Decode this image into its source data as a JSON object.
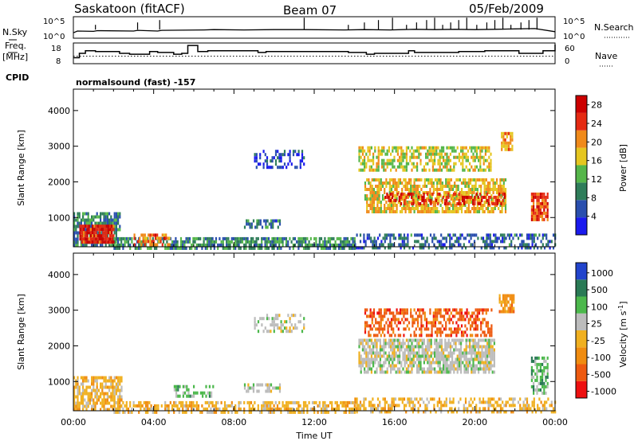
{
  "header": {
    "station": "Saskatoon (fitACF)",
    "beam": "Beam 07",
    "date": "05/Feb/2009",
    "cpid_label": "CPID",
    "cpid_value": "normalsound (fast) -157"
  },
  "noise_panel": {
    "left_label": "N.Sky",
    "right_label": "N.Search",
    "tick_high": "10^5",
    "tick_low": "10^0",
    "tick_high_right": "10^5",
    "tick_low_right": "10^0"
  },
  "freq_panel": {
    "left_label_1": "Freq.",
    "left_label_2": "[MHz]",
    "right_label": "Nave",
    "left_ticks": [
      "18",
      "8"
    ],
    "right_ticks": [
      "60",
      "0"
    ]
  },
  "chart_data": [
    {
      "type": "line",
      "name": "noise",
      "ylim_log10": [
        0,
        5
      ],
      "x_hours": [
        0,
        0.2,
        1.0,
        1.2,
        3.0,
        3.2,
        4.2,
        4.4,
        6.5,
        7.0,
        8.5,
        10.0,
        11.5,
        13.5,
        14.5,
        15.8,
        17.0,
        18.0,
        19.0,
        20.0,
        21.0,
        22.0,
        23.0,
        24.0
      ],
      "y_log10": [
        1.1,
        1.6,
        1.5,
        1.7,
        1.6,
        1.8,
        1.6,
        1.8,
        1.9,
        2.0,
        1.9,
        2.0,
        2.0,
        1.9,
        2.0,
        1.9,
        2.1,
        2.0,
        2.1,
        2.0,
        2.1,
        2.2,
        2.3,
        1.4
      ],
      "spike_hours": [
        1.1,
        3.2,
        4.3,
        11.5,
        13.7,
        14.5,
        15.2,
        15.9,
        16.6,
        17.1,
        17.6,
        18.0,
        18.4,
        18.8,
        19.2,
        19.6,
        20.1,
        20.6,
        21.0,
        21.4,
        21.8,
        22.3,
        22.7,
        23.1
      ]
    },
    {
      "type": "line",
      "name": "frequency",
      "ylim": [
        8,
        18
      ],
      "step_x_hours": [
        0,
        0.3,
        0.6,
        1.1,
        2.3,
        2.8,
        3.8,
        4.2,
        5.0,
        5.4,
        5.7,
        6.2,
        6.7,
        9.2,
        9.6,
        11.7,
        13.7,
        14.6,
        15.0,
        16.7,
        17.0,
        19.2,
        20.5,
        22.2,
        23.4,
        24.0
      ],
      "step_y": [
        10.5,
        13,
        14.5,
        14,
        13,
        12.5,
        14,
        13.5,
        12.5,
        13,
        17.5,
        14,
        14.5,
        13.5,
        14,
        14,
        13.5,
        12.5,
        13,
        14.5,
        13.5,
        14,
        14.5,
        13,
        14.5,
        18
      ],
      "nave_level_right_axis": 20,
      "right_ylim": [
        0,
        60
      ]
    },
    {
      "type": "heatmap",
      "name": "power",
      "title": "",
      "xlabel": "",
      "ylabel": "Slant Range [km]",
      "xlim_hours": [
        0,
        24
      ],
      "ylim_km": [
        180,
        4600
      ],
      "x_ticks": [
        "00:00",
        "04:00",
        "08:00",
        "12:00",
        "16:00",
        "20:00",
        "00:00"
      ],
      "y_ticks": [
        1000,
        2000,
        3000,
        4000
      ],
      "colorbar_label": "Power [dB]",
      "colorbar_ticks": [
        4,
        8,
        12,
        16,
        20,
        24,
        28
      ],
      "colorbar_range": [
        0,
        30
      ],
      "colorbar_colors": [
        "#1a1aee",
        "#2a4fae",
        "#2f7d5a",
        "#55b64a",
        "#e5c620",
        "#f08a1a",
        "#e52a12",
        "#cc0000"
      ],
      "regions": [
        {
          "t0": 0.0,
          "t1": 2.3,
          "r0": 180,
          "r1": 1150,
          "val": 9,
          "density": 0.7
        },
        {
          "t0": 0.3,
          "t1": 2.0,
          "r0": 350,
          "r1": 800,
          "val": 26,
          "density": 0.95
        },
        {
          "t0": 2.0,
          "t1": 14.0,
          "r0": 180,
          "r1": 450,
          "val": 10,
          "density": 0.7
        },
        {
          "t0": 3.0,
          "t1": 4.8,
          "r0": 200,
          "r1": 550,
          "val": 22,
          "density": 0.6
        },
        {
          "t0": 8.5,
          "t1": 10.3,
          "r0": 700,
          "r1": 950,
          "val": 8,
          "density": 0.6
        },
        {
          "t0": 9.0,
          "t1": 11.5,
          "r0": 2450,
          "r1": 2900,
          "val": 4,
          "density": 0.45
        },
        {
          "t0": 14.2,
          "t1": 20.8,
          "r0": 2300,
          "r1": 3000,
          "val": 16,
          "density": 0.6
        },
        {
          "t0": 14.5,
          "t1": 21.5,
          "r0": 1200,
          "r1": 2100,
          "val": 18,
          "density": 0.7
        },
        {
          "t0": 15.5,
          "t1": 21.5,
          "r0": 1400,
          "r1": 1700,
          "val": 26,
          "density": 0.35
        },
        {
          "t0": 14.0,
          "t1": 24.0,
          "r0": 180,
          "r1": 550,
          "val": 7,
          "density": 0.5
        },
        {
          "t0": 21.3,
          "t1": 21.9,
          "r0": 2950,
          "r1": 3400,
          "val": 20,
          "density": 0.8
        },
        {
          "t0": 22.8,
          "t1": 23.6,
          "r0": 900,
          "r1": 1700,
          "val": 24,
          "density": 0.8
        }
      ]
    },
    {
      "type": "heatmap",
      "name": "velocity",
      "title": "",
      "xlabel": "Time UT",
      "ylabel": "Slant Range [km]",
      "xlim_hours": [
        0,
        24
      ],
      "ylim_km": [
        180,
        4600
      ],
      "x_ticks": [
        "00:00",
        "04:00",
        "08:00",
        "12:00",
        "16:00",
        "20:00",
        "00:00"
      ],
      "y_ticks": [
        1000,
        2000,
        3000,
        4000
      ],
      "colorbar_label": "Velocity [m s^-1]",
      "colorbar_ticks": [
        "1000",
        "500",
        "100",
        "25",
        "-25",
        "-100",
        "-500",
        "-1000"
      ],
      "colorbar_colors": [
        "#2244cc",
        "#2a7a55",
        "#4cb84c",
        "#bcbcbc",
        "#f0b020",
        "#f08c10",
        "#ee5a10",
        "#ee1010"
      ],
      "regions": [
        {
          "t0": 0.0,
          "t1": 2.4,
          "r0": 180,
          "r1": 1150,
          "cat": 4,
          "density": 0.75
        },
        {
          "t0": 2.0,
          "t1": 14.0,
          "r0": 180,
          "r1": 450,
          "cat": 4,
          "density": 0.6
        },
        {
          "t0": 5.0,
          "t1": 7.0,
          "r0": 600,
          "r1": 900,
          "cat": 2,
          "density": 0.5
        },
        {
          "t0": 8.5,
          "t1": 10.3,
          "r0": 700,
          "r1": 950,
          "cat": 3,
          "density": 0.6
        },
        {
          "t0": 9.0,
          "t1": 11.5,
          "r0": 2450,
          "r1": 2900,
          "cat": 3,
          "density": 0.45
        },
        {
          "t0": 14.2,
          "t1": 21.0,
          "r0": 1300,
          "r1": 2200,
          "cat": 3,
          "density": 0.75
        },
        {
          "t0": 14.5,
          "t1": 20.8,
          "r0": 2300,
          "r1": 3050,
          "cat": 6,
          "density": 0.55
        },
        {
          "t0": 21.2,
          "t1": 21.9,
          "r0": 2950,
          "r1": 3450,
          "cat": 5,
          "density": 0.8
        },
        {
          "t0": 22.8,
          "t1": 23.6,
          "r0": 700,
          "r1": 1700,
          "cat": 2,
          "density": 0.6
        },
        {
          "t0": 14.0,
          "t1": 24.0,
          "r0": 180,
          "r1": 550,
          "cat": 4,
          "density": 0.45
        }
      ]
    }
  ]
}
